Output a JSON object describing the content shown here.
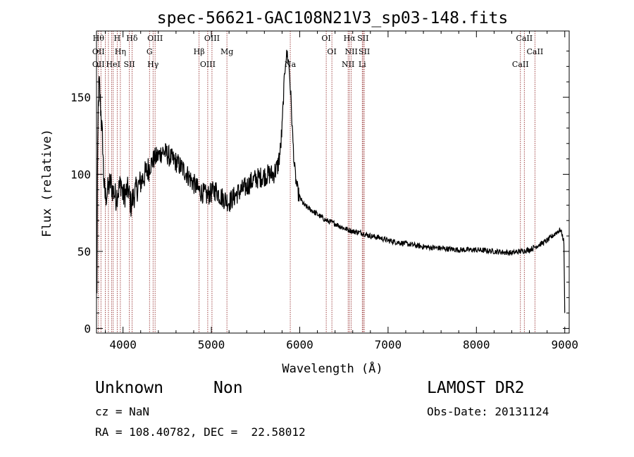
{
  "chart_data": {
    "type": "line",
    "title": "spec-56621-GAC108N21V3_sp03-148.fits",
    "xlabel": "Wavelength (Å)",
    "ylabel": "Flux (relative)",
    "xlim": [
      3700,
      9050
    ],
    "ylim": [
      -3,
      193
    ],
    "xticks": [
      4000,
      5000,
      6000,
      7000,
      8000,
      9000
    ],
    "yticks": [
      0,
      50,
      100,
      150
    ],
    "grid": false,
    "line_color": "#000000",
    "marker_color": "#8b1a1a",
    "series": [
      {
        "x": [
          3705,
          3710,
          3720,
          3730,
          3740,
          3750,
          3760,
          3770,
          3780,
          3790,
          3800,
          3820,
          3840,
          3860,
          3880,
          3900,
          3920,
          3950,
          3980,
          4000,
          4030,
          4060,
          4090,
          4120,
          4150,
          4200,
          4250,
          4300,
          4350,
          4400,
          4450,
          4500,
          4550,
          4600,
          4650,
          4700,
          4750,
          4800,
          4850,
          4900,
          4950,
          5000,
          5050,
          5100,
          5150,
          5200,
          5250,
          5300,
          5350,
          5400,
          5450,
          5500,
          5550,
          5600,
          5650,
          5700,
          5750,
          5780,
          5800,
          5820,
          5840,
          5860,
          5880,
          5900,
          5920,
          5940,
          5960,
          5980,
          6000,
          6050,
          6100,
          6150,
          6200,
          6300,
          6400,
          6500,
          6600,
          6700,
          6800,
          6900,
          7000,
          7200,
          7400,
          7600,
          7800,
          8000,
          8200,
          8400,
          8500,
          8600,
          8700,
          8800,
          8900,
          8950,
          8970,
          8990,
          9000
        ],
        "y": [
          20,
          95,
          145,
          160,
          150,
          140,
          130,
          120,
          100,
          90,
          85,
          88,
          92,
          95,
          90,
          88,
          85,
          90,
          95,
          85,
          88,
          90,
          80,
          86,
          90,
          95,
          100,
          105,
          110,
          112,
          115,
          113,
          110,
          108,
          105,
          102,
          98,
          94,
          90,
          88,
          86,
          88,
          90,
          86,
          84,
          82,
          85,
          88,
          90,
          92,
          95,
          97,
          98,
          99,
          100,
          100,
          105,
          115,
          130,
          155,
          175,
          178,
          170,
          150,
          125,
          105,
          95,
          88,
          85,
          80,
          78,
          76,
          74,
          70,
          68,
          65,
          63,
          62,
          60,
          59,
          57,
          55,
          53,
          52,
          51,
          51,
          50,
          49,
          50,
          51,
          54,
          57,
          62,
          64,
          61,
          56,
          10
        ]
      }
    ],
    "line_markers": [
      {
        "x": 3722,
        "labels": [
          "Hθ",
          "OII",
          "OII"
        ]
      },
      {
        "x": 3750,
        "labels": []
      },
      {
        "x": 3800,
        "labels": []
      },
      {
        "x": 3835,
        "labels": []
      },
      {
        "x": 3870,
        "labels": []
      },
      {
        "x": 3889,
        "labels": [
          "HeI"
        ]
      },
      {
        "x": 3934,
        "labels": [
          "H"
        ]
      },
      {
        "x": 3970,
        "labels": [
          "Hη"
        ]
      },
      {
        "x": 4072,
        "labels": [
          "SII"
        ]
      },
      {
        "x": 4102,
        "labels": [
          "Hδ"
        ]
      },
      {
        "x": 4300,
        "labels": [
          "G"
        ]
      },
      {
        "x": 4340,
        "labels": [
          "Hγ"
        ]
      },
      {
        "x": 4363,
        "labels": [
          "OIII"
        ]
      },
      {
        "x": 4861,
        "labels": [
          "Hβ"
        ]
      },
      {
        "x": 4959,
        "labels": [
          "OIII"
        ]
      },
      {
        "x": 5007,
        "labels": [
          "OIII"
        ]
      },
      {
        "x": 5176,
        "labels": [
          "Mg"
        ]
      },
      {
        "x": 5893,
        "labels": [
          "Na"
        ]
      },
      {
        "x": 6300,
        "labels": [
          "OI"
        ]
      },
      {
        "x": 6364,
        "labels": [
          "OI"
        ]
      },
      {
        "x": 6548,
        "labels": [
          "NII"
        ]
      },
      {
        "x": 6563,
        "labels": [
          "Hα"
        ]
      },
      {
        "x": 6584,
        "labels": [
          "NII"
        ]
      },
      {
        "x": 6708,
        "labels": [
          "Li"
        ]
      },
      {
        "x": 6717,
        "labels": [
          "SII"
        ]
      },
      {
        "x": 6731,
        "labels": [
          "SII"
        ]
      },
      {
        "x": 8498,
        "labels": [
          "CaII"
        ]
      },
      {
        "x": 8542,
        "labels": [
          "CaII"
        ]
      },
      {
        "x": 8662,
        "labels": [
          "CaII"
        ]
      }
    ]
  },
  "footer": {
    "class_label": "Unknown",
    "subclass_label": "Non",
    "cz_label": "cz = NaN",
    "coords_label": "RA = 108.40782, DEC =  22.58012",
    "survey_label": "LAMOST DR2",
    "obs_date_label": "Obs-Date: 20131124"
  }
}
